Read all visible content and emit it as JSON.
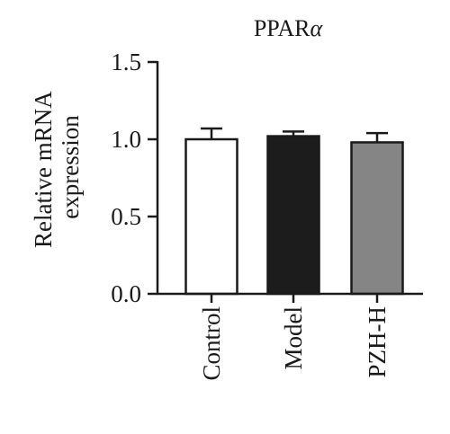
{
  "chart_data": {
    "type": "bar",
    "title": "PPAR",
    "title_symbol": "α",
    "ylabel_lines": [
      "Relative mRNA",
      "expression"
    ],
    "xlabel": "",
    "categories": [
      "Control",
      "Model",
      "PZH-H"
    ],
    "values": [
      1.0,
      1.02,
      0.98
    ],
    "errors": [
      0.07,
      0.03,
      0.06
    ],
    "bar_fills": [
      "#ffffff",
      "#1c1c1c",
      "#858585"
    ],
    "bar_stroke": "#1a1a1a",
    "ylim": [
      0,
      1.5
    ],
    "yticks": [
      "0.0",
      "0.5",
      "1.0",
      "1.5"
    ],
    "ytick_values": [
      0,
      0.5,
      1.0,
      1.5
    ],
    "grid": false,
    "legend": "none"
  }
}
